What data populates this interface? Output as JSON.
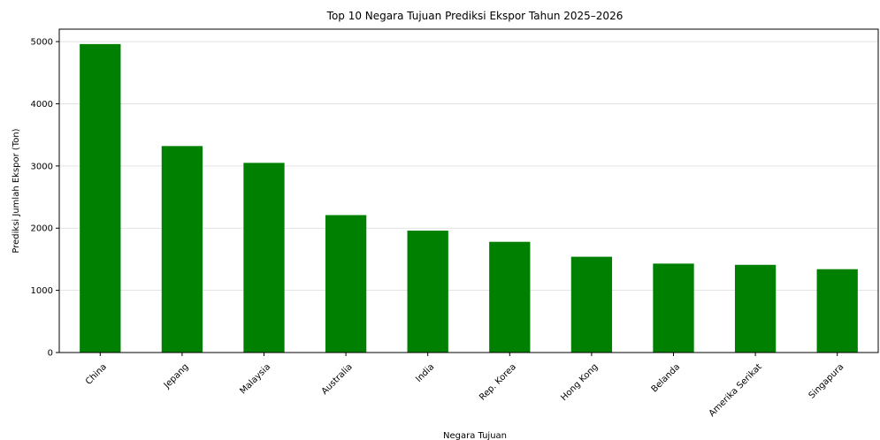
{
  "chart_data": {
    "type": "bar",
    "title": "Top 10 Negara Tujuan Prediksi Ekspor Tahun 2025–2026",
    "xlabel": "Negara Tujuan",
    "ylabel": "Prediksi Jumlah Ekspor (Ton)",
    "categories": [
      "China",
      "Jepang",
      "Malaysia",
      "Australia",
      "India",
      "Rep. Korea",
      "Hong Kong",
      "Belanda",
      "Amerika Serikat",
      "Singapura"
    ],
    "values": [
      4960,
      3320,
      3050,
      2210,
      1960,
      1780,
      1540,
      1430,
      1410,
      1340
    ],
    "ylim": [
      0,
      5200
    ],
    "yticks": [
      0,
      1000,
      2000,
      3000,
      4000,
      5000
    ],
    "grid": "horizontal",
    "bar_color": "#008000",
    "legend": "none"
  }
}
